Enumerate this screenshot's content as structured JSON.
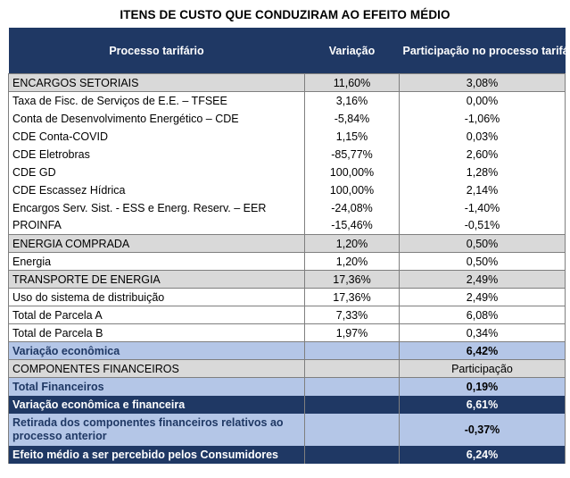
{
  "title": "ITENS DE CUSTO QUE CONDUZIRAM AO EFEITO MÉDIO",
  "headers": {
    "col1": "Processo tarifário",
    "col2": "Variação",
    "col3": "Participação no processo tarifário"
  },
  "rows": [
    {
      "label": "ENCARGOS SETORIAIS",
      "variacao": "11,60%",
      "participacao": "3,08%"
    },
    {
      "label": "Taxa de Fisc. de Serviços de E.E. – TFSEE",
      "variacao": "3,16%",
      "participacao": "0,00%"
    },
    {
      "label": "Conta de Desenvolvimento Energético – CDE",
      "variacao": "-5,84%",
      "participacao": "-1,06%"
    },
    {
      "label": "CDE Conta-COVID",
      "variacao": "1,15%",
      "participacao": "0,03%"
    },
    {
      "label": "CDE Eletrobras",
      "variacao": "-85,77%",
      "participacao": "2,60%"
    },
    {
      "label": "CDE GD",
      "variacao": "100,00%",
      "participacao": "1,28%"
    },
    {
      "label": "CDE Escassez Hídrica",
      "variacao": "100,00%",
      "participacao": "2,14%"
    },
    {
      "label": "Encargos Serv. Sist. - ESS e Energ. Reserv. – EER",
      "variacao": "-24,08%",
      "participacao": "-1,40%"
    },
    {
      "label": "PROINFA",
      "variacao": "-15,46%",
      "participacao": "-0,51%"
    },
    {
      "label": "ENERGIA COMPRADA",
      "variacao": "1,20%",
      "participacao": "0,50%"
    },
    {
      "label": "Energia",
      "variacao": "1,20%",
      "participacao": "0,50%"
    },
    {
      "label": "TRANSPORTE DE ENERGIA",
      "variacao": "17,36%",
      "participacao": "2,49%"
    },
    {
      "label": "Uso do sistema de distribuição",
      "variacao": "17,36%",
      "participacao": "2,49%"
    },
    {
      "label": "Total de Parcela A",
      "variacao": "7,33%",
      "participacao": "6,08%"
    },
    {
      "label": "Total de Parcela B",
      "variacao": "1,97%",
      "participacao": "0,34%"
    },
    {
      "label": "Variação econômica",
      "variacao": "",
      "participacao": "6,42%"
    },
    {
      "label": "COMPONENTES FINANCEIROS",
      "variacao": "",
      "participacao": "Participação"
    },
    {
      "label": "Total Financeiros",
      "variacao": "",
      "participacao": "0,19%"
    },
    {
      "label": "Variação econômica e financeira",
      "variacao": "",
      "participacao": "6,61%"
    },
    {
      "label": "Retirada dos componentes financeiros relativos ao processo anterior",
      "variacao": "",
      "participacao": "-0,37%"
    },
    {
      "label": "Efeito médio a ser percebido pelos Consumidores",
      "variacao": "",
      "participacao": "6,24%"
    }
  ],
  "colors": {
    "header_bg": "#1f3864",
    "section_grey": "#d9d9d9",
    "light_blue": "#b4c6e7"
  }
}
